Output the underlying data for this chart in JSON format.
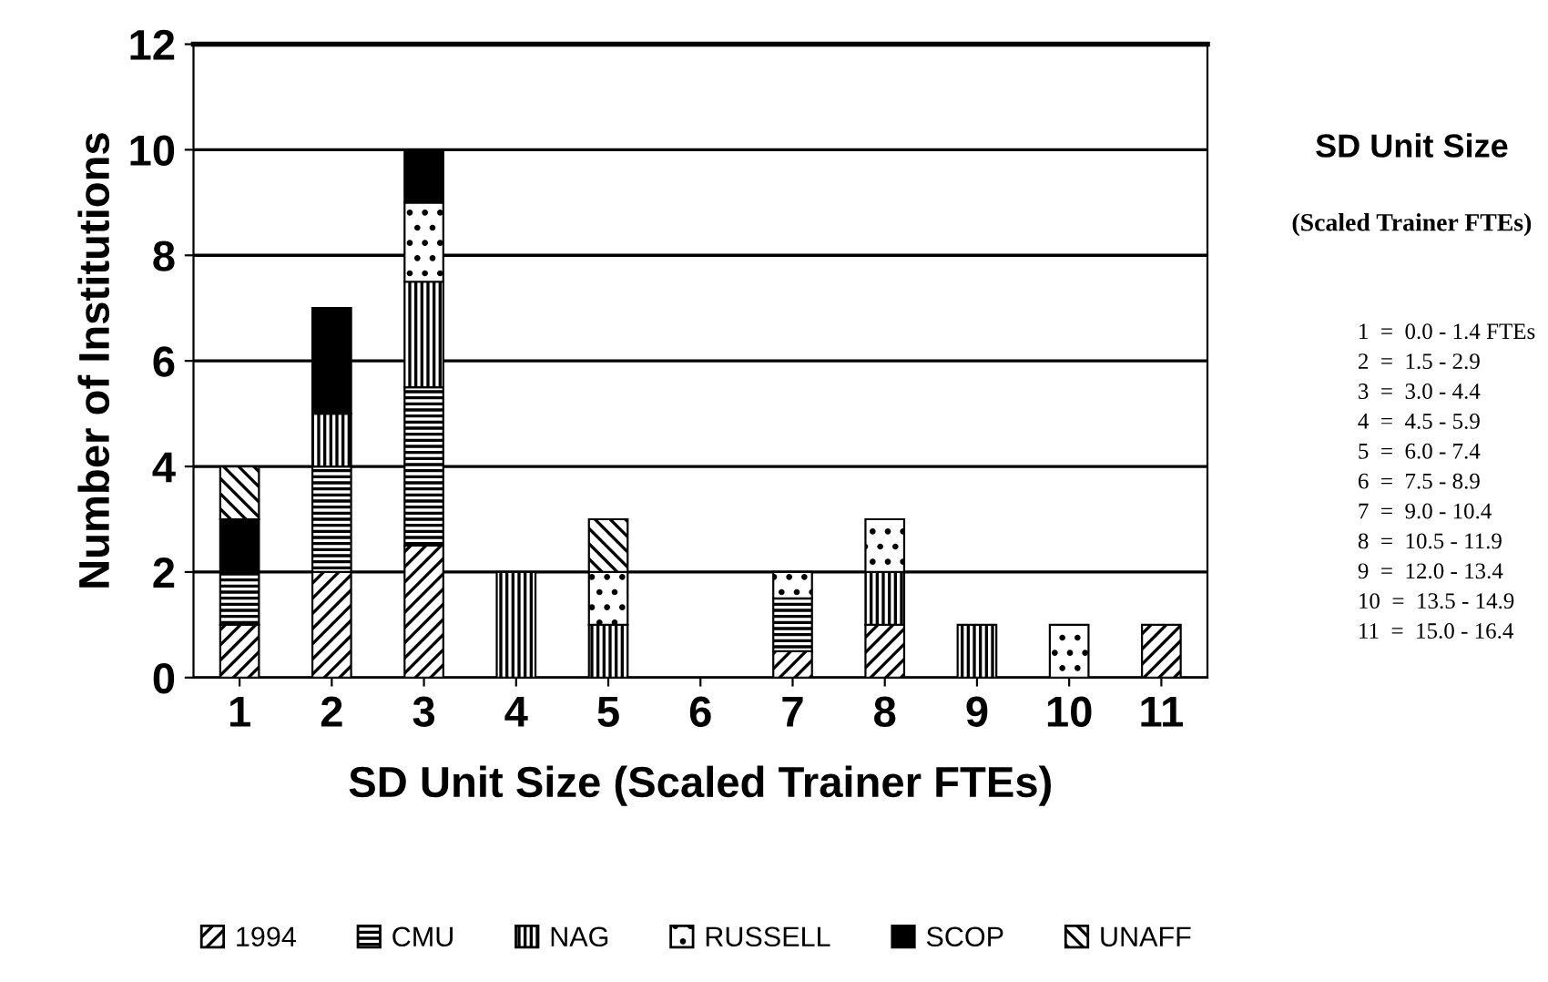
{
  "chart_data": {
    "type": "bar",
    "stacked": true,
    "xlabel": "SD Unit Size (Scaled Trainer FTEs)",
    "ylabel": "Number of Institutions",
    "categories": [
      "1",
      "2",
      "3",
      "4",
      "5",
      "6",
      "7",
      "8",
      "9",
      "10",
      "11"
    ],
    "series": [
      {
        "name": "1994",
        "color": "#000000",
        "values": [
          1,
          2,
          2.5,
          0,
          0,
          0,
          0.5,
          1,
          0,
          0,
          1
        ]
      },
      {
        "name": "CMU",
        "color": "#000000",
        "values": [
          1,
          2,
          3,
          0,
          0,
          0,
          1,
          0,
          0,
          0,
          0
        ]
      },
      {
        "name": "NAG",
        "color": "#000000",
        "values": [
          0,
          1,
          2,
          2,
          1,
          0,
          0,
          1,
          1,
          0,
          0
        ]
      },
      {
        "name": "RUSSELL",
        "color": "#000000",
        "values": [
          0,
          0,
          1.5,
          0,
          1,
          0,
          0.5,
          1,
          0,
          1,
          0
        ]
      },
      {
        "name": "SCOP",
        "color": "#000000",
        "values": [
          1,
          2,
          1,
          0,
          0,
          0,
          0,
          0,
          0,
          0,
          0
        ]
      },
      {
        "name": "UNAFF",
        "color": "#000000",
        "values": [
          1,
          0,
          0,
          0,
          1,
          0,
          0,
          0,
          0,
          0,
          0
        ]
      }
    ],
    "ylim": [
      0,
      12
    ],
    "yticks": [
      0,
      2,
      4,
      6,
      8,
      10,
      12
    ],
    "grid": "y",
    "legend": "bottom",
    "annotations": [
      "SD Unit Size",
      "(Scaled Trainer FTEs)",
      "1  =  0.0 - 1.4 FTEs",
      "2  =  1.5 - 2.9",
      "3  =  3.0 - 4.4",
      "4  =  4.5 - 5.9",
      "5  =  6.0 - 7.4",
      "6  =  7.5 - 8.9",
      "7  =  9.0 - 10.4",
      "8  =  10.5 - 11.9",
      "9  =  12.0 - 13.4",
      "10  =  13.5 - 14.9",
      "11  =  15.0 - 16.4"
    ]
  }
}
